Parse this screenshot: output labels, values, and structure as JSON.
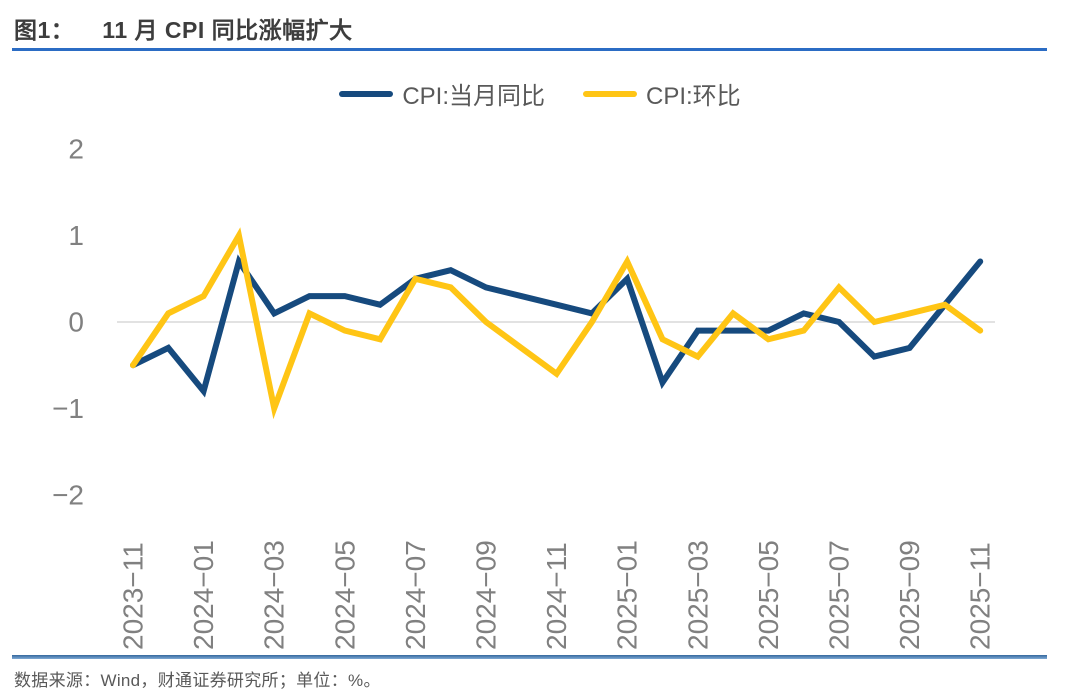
{
  "figure": {
    "label": "图1：",
    "title": "11 月 CPI 同比涨幅扩大",
    "source_note": "数据来源：Wind，财通证券研究所；单位：%。"
  },
  "chart_data": {
    "type": "line",
    "x": [
      "2023-11",
      "2023-12",
      "2024-01",
      "2024-02",
      "2024-03",
      "2024-04",
      "2024-05",
      "2024-06",
      "2024-07",
      "2024-08",
      "2024-09",
      "2024-10",
      "2024-11",
      "2024-12",
      "2025-01",
      "2025-02",
      "2025-03",
      "2025-04",
      "2025-05",
      "2025-06",
      "2025-07",
      "2025-08",
      "2025-09",
      "2025-10",
      "2025-11"
    ],
    "series": [
      {
        "name": "CPI:当月同比",
        "color": "#164a7e",
        "values": [
          -0.5,
          -0.3,
          -0.8,
          0.7,
          0.1,
          0.3,
          0.3,
          0.2,
          0.5,
          0.6,
          0.4,
          0.3,
          0.2,
          0.1,
          0.5,
          -0.7,
          -0.1,
          -0.1,
          -0.1,
          0.1,
          0.0,
          -0.4,
          -0.3,
          0.2,
          0.7
        ]
      },
      {
        "name": "CPI:环比",
        "color": "#ffc515",
        "values": [
          -0.5,
          0.1,
          0.3,
          1.0,
          -1.0,
          0.1,
          -0.1,
          -0.2,
          0.5,
          0.4,
          0.0,
          -0.3,
          -0.6,
          0.0,
          0.7,
          -0.2,
          -0.4,
          0.1,
          -0.2,
          -0.1,
          0.4,
          0.0,
          0.1,
          0.2,
          -0.1
        ]
      }
    ],
    "title": "11 月 CPI 同比涨幅扩大",
    "xlabel": "",
    "ylabel": "",
    "unit": "%",
    "ylim": [
      -2,
      2
    ],
    "yticks": [
      2,
      1,
      0,
      -1,
      -2
    ],
    "xtick_every": 2,
    "grid": "zero-line-only",
    "legend_position": "top-center"
  },
  "colors": {
    "series_yoy_blue": "#164a7e",
    "series_mom_yellow": "#ffc515",
    "zero_gridline": "#d9d9d9",
    "tick_text": "#808080",
    "legend_text": "#595959",
    "title_text": "#3d3d3d",
    "title_rule_blue": "#2b6cc4",
    "footer_rule_blue": "#35689d"
  }
}
